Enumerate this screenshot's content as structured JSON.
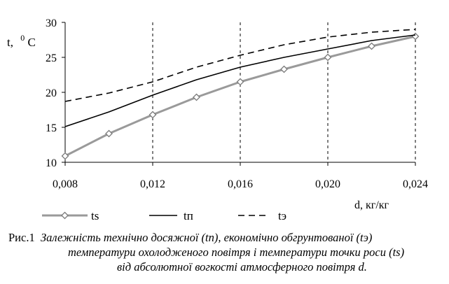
{
  "chart_data": {
    "type": "line",
    "ylabel_text": "t,",
    "ylabel_unit_sup": "0",
    "ylabel_unit": "C",
    "xlabel": "d, кг/кг",
    "xlim": [
      0.008,
      0.024
    ],
    "ylim": [
      10,
      30
    ],
    "x_ticks": [
      "0,008",
      "0,012",
      "0,016",
      "0,020",
      "0,024"
    ],
    "y_ticks": [
      "10",
      "15",
      "20",
      "25",
      "30"
    ],
    "grid": "vertical dashed",
    "legend_position": "bottom",
    "series": [
      {
        "name": "ts",
        "style": "gray line with diamond markers",
        "color": "#9a9a9a",
        "x": [
          0.008,
          0.01,
          0.012,
          0.014,
          0.016,
          0.018,
          0.02,
          0.022,
          0.024
        ],
        "y": [
          10.9,
          14.1,
          16.8,
          19.3,
          21.5,
          23.3,
          25.0,
          26.6,
          28.0
        ]
      },
      {
        "name": "tп",
        "style": "solid black",
        "color": "#000000",
        "x": [
          0.008,
          0.01,
          0.012,
          0.014,
          0.016,
          0.018,
          0.02,
          0.022,
          0.024
        ],
        "y": [
          15.1,
          17.2,
          19.6,
          21.8,
          23.6,
          25.0,
          26.2,
          27.4,
          28.2
        ]
      },
      {
        "name": "tэ",
        "style": "dashed black",
        "color": "#000000",
        "x": [
          0.008,
          0.01,
          0.012,
          0.014,
          0.016,
          0.018,
          0.02,
          0.022,
          0.024
        ],
        "y": [
          18.7,
          19.9,
          21.5,
          23.6,
          25.3,
          26.8,
          27.9,
          28.6,
          29.0
        ]
      }
    ]
  },
  "caption": {
    "prefix": "Рис.1",
    "line1": "Залежність технічно досяжної (tп), економічно обгрунтованої  (tэ)",
    "line2": "температури охолодженого повітря і температури точки роси (ts)",
    "line3": "від абсолютної  вогкості атмосферного повітря d."
  }
}
